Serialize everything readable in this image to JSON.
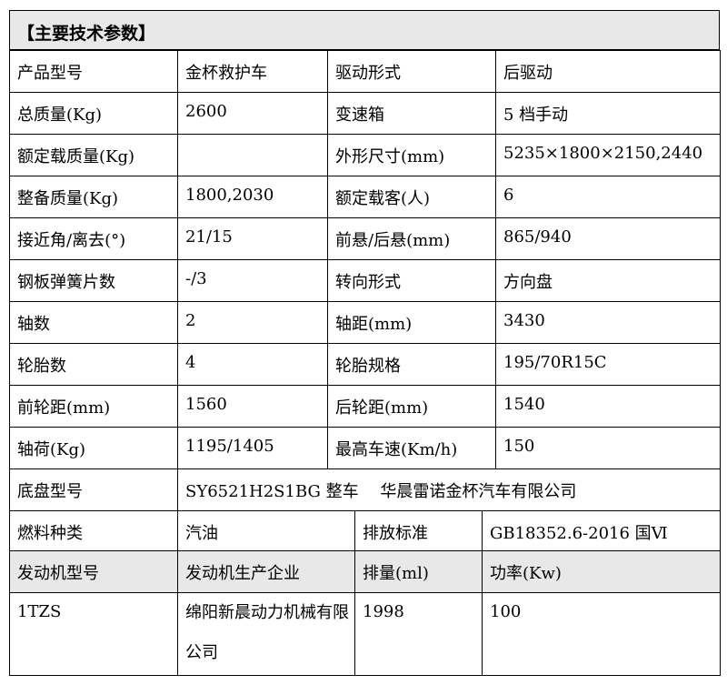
{
  "title": "【主要技术参数】",
  "spec_rows": [
    [
      "产品型号",
      "金杯救护车",
      "驱动形式",
      "后驱动"
    ],
    [
      "总质量(Kg)",
      "2600",
      "变速箱",
      "5 档手动"
    ],
    [
      "额定载质量(Kg)",
      "",
      "外形尺寸(mm)",
      "5235×1800×2150,2440"
    ],
    [
      "整备质量(Kg)",
      "1800,2030",
      "额定载客(人)",
      "6"
    ],
    [
      "接近角/离去(°)",
      "21/15",
      "前悬/后悬(mm)",
      "865/940"
    ],
    [
      "钢板弹簧片数",
      "-/3",
      "转向形式",
      "方向盘"
    ],
    [
      "轴数",
      "2",
      "轴距(mm)",
      "3430"
    ],
    [
      "轮胎数",
      "4",
      "轮胎规格",
      "195/70R15C"
    ],
    [
      "前轮距(mm)",
      "1560",
      "后轮距(mm)",
      "1540"
    ],
    [
      "轴荷(Kg)",
      "1195/1405",
      "最高车速(Km/h)",
      "150"
    ]
  ],
  "chassis": {
    "label": "底盘型号",
    "value": "SY6521H2S1BG 整车　 华晨雷诺金杯汽车有限公司"
  },
  "fuel_row": [
    "燃料种类",
    "汽油",
    "排放标准",
    "GB18352.6-2016 国Ⅵ"
  ],
  "engine_header": [
    "发动机型号",
    "发动机生产企业",
    "排量(ml)",
    "功率(Kw)"
  ],
  "engine_row": [
    "1TZS",
    "绵阳新晨动力机械有限公司",
    "1998",
    "100"
  ]
}
